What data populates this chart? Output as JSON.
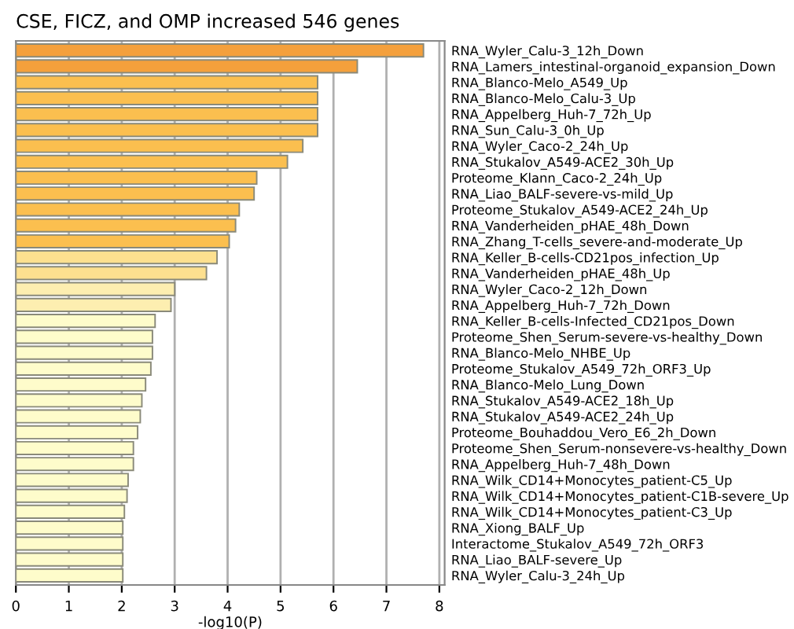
{
  "chart_data": {
    "type": "bar",
    "orientation": "horizontal",
    "title": "CSE, FICZ, and OMP increased 546 genes",
    "xlabel": "-log10(P)",
    "categories": [
      "RNA_Wyler_Calu-3_12h_Down",
      "RNA_Lamers_intestinal-organoid_expansion_Down",
      "RNA_Blanco-Melo_A549_Up",
      "RNA_Blanco-Melo_Calu-3_Up",
      "RNA_Appelberg_Huh-7_72h_Up",
      "RNA_Sun_Calu-3_0h_Up",
      "RNA_Wyler_Caco-2_24h_Up",
      "RNA_Stukalov_A549-ACE2_30h_Up",
      "Proteome_Klann_Caco-2_24h_Up",
      "RNA_Liao_BALF-severe-vs-mild_Up",
      "Proteome_Stukalov_A549-ACE2_24h_Up",
      "RNA_Vanderheiden_pHAE_48h_Down",
      "RNA_Zhang_T-cells_severe-and-moderate_Up",
      "RNA_Keller_B-cells-CD21pos_infection_Up",
      "RNA_Vanderheiden_pHAE_48h_Up",
      "RNA_Wyler_Caco-2_12h_Down",
      "RNA_Appelberg_Huh-7_72h_Down",
      "RNA_Keller_B-cells-Infected_CD21pos_Down",
      "Proteome_Shen_Serum-severe-vs-healthy_Down",
      "RNA_Blanco-Melo_NHBE_Up",
      "Proteome_Stukalov_A549_72h_ORF3_Up",
      "RNA_Blanco-Melo_Lung_Down",
      "RNA_Stukalov_A549-ACE2_18h_Up",
      "RNA_Stukalov_A549-ACE2_24h_Up",
      "Proteome_Bouhaddou_Vero_E6_2h_Down",
      "Proteome_Shen_Serum-nonsevere-vs-healthy_Down",
      "RNA_Appelberg_Huh-7_48h_Down",
      "RNA_Wilk_CD14+Monocytes_patient-C5_Up",
      "RNA_Wilk_CD14+Monocytes_patient-C1B-severe_Up",
      "RNA_Wilk_CD14+Monocytes_patient-C3_Up",
      "RNA_Xiong_BALF_Up",
      "Interactome_Stukalov_A549_72h_ORF3",
      "RNA_Liao_BALF-severe_Up",
      "RNA_Wyler_Calu-3_24h_Up"
    ],
    "values": [
      7.7,
      6.45,
      5.7,
      5.7,
      5.7,
      5.7,
      5.42,
      5.13,
      4.55,
      4.5,
      4.22,
      4.15,
      4.03,
      3.8,
      3.6,
      3.0,
      2.93,
      2.63,
      2.58,
      2.58,
      2.55,
      2.45,
      2.38,
      2.35,
      2.3,
      2.22,
      2.22,
      2.12,
      2.1,
      2.05,
      2.02,
      2.02,
      2.02,
      2.02
    ],
    "colors": [
      "#f4a03c",
      "#f4a03c",
      "#fbbf4f",
      "#fbbf4f",
      "#fbbf4f",
      "#fbbf4f",
      "#fbbf4f",
      "#fbbf4f",
      "#fbbf4f",
      "#fbbf4f",
      "#fbbf4f",
      "#fbbf4f",
      "#fbbf4f",
      "#fde08f",
      "#fde08f",
      "#fdeeb0",
      "#fdeeb0",
      "#fefccb",
      "#fefccb",
      "#fefccb",
      "#fefccb",
      "#fefccb",
      "#fefccb",
      "#fefccb",
      "#fefccb",
      "#fefccb",
      "#fefccb",
      "#fefccb",
      "#fefccb",
      "#fefccb",
      "#fefccb",
      "#fefccb",
      "#fefccb",
      "#fefccb"
    ],
    "xlim": [
      0,
      8.1
    ],
    "xticks": [
      0,
      1,
      2,
      3,
      4,
      5,
      6,
      7,
      8
    ],
    "grid": "x"
  }
}
